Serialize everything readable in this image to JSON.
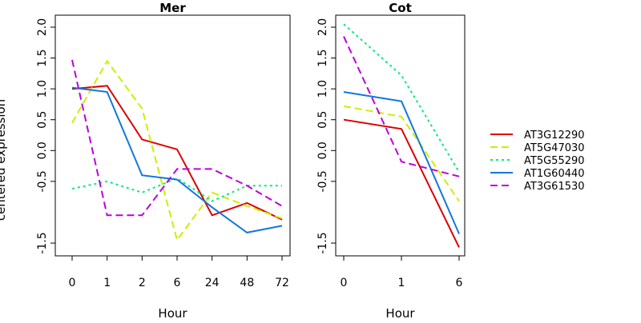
{
  "chart_data": [
    {
      "type": "line",
      "title": "Mer",
      "xlabel": "Hour",
      "ylabel": "centered expression",
      "categories": [
        "0",
        "1",
        "2",
        "6",
        "24",
        "48",
        "72"
      ],
      "ylim": [
        -1.75,
        2.2
      ],
      "yticks": [
        "-1.5",
        "-0.5",
        "0.0",
        "0.5",
        "1.0",
        "1.5",
        "2.0"
      ],
      "ytick_values": [
        -1.5,
        -0.5,
        0.0,
        0.5,
        1.0,
        1.5,
        2.0
      ],
      "grid": false,
      "series": [
        {
          "name": "AT3G12290",
          "values": [
            1.0,
            1.05,
            0.18,
            0.02,
            -1.05,
            -0.85,
            -1.12
          ]
        },
        {
          "name": "AT5G47030",
          "values": [
            0.45,
            1.45,
            0.68,
            -1.45,
            -0.68,
            -0.9,
            -1.1
          ]
        },
        {
          "name": "AT5G55290",
          "values": [
            -0.62,
            -0.5,
            -0.68,
            -0.45,
            -0.82,
            -0.57,
            -0.57
          ]
        },
        {
          "name": "AT1G60440",
          "values": [
            1.02,
            0.95,
            -0.4,
            -0.47,
            -0.92,
            -1.33,
            -1.22
          ]
        },
        {
          "name": "AT3G61530",
          "values": [
            1.47,
            -1.05,
            -1.05,
            -0.3,
            -0.3,
            -0.57,
            -0.9
          ]
        }
      ]
    },
    {
      "type": "line",
      "title": "Cot",
      "xlabel": "Hour",
      "categories": [
        "0",
        "1",
        "6"
      ],
      "ylim": [
        -1.75,
        2.2
      ],
      "yticks": [
        "-1.5",
        "-0.5",
        "0.0",
        "0.5",
        "1.0",
        "1.5",
        "2.0"
      ],
      "ytick_values": [
        -1.5,
        -0.5,
        0.0,
        0.5,
        1.0,
        1.5,
        2.0
      ],
      "grid": false,
      "series": [
        {
          "name": "AT3G12290",
          "values": [
            0.5,
            0.35,
            -1.57
          ]
        },
        {
          "name": "AT5G47030",
          "values": [
            0.72,
            0.55,
            -0.82
          ]
        },
        {
          "name": "AT5G55290",
          "values": [
            2.05,
            1.22,
            -0.35
          ]
        },
        {
          "name": "AT1G60440",
          "values": [
            0.95,
            0.8,
            -1.35
          ]
        },
        {
          "name": "AT3G61530",
          "values": [
            1.85,
            -0.18,
            -0.42
          ]
        }
      ]
    }
  ],
  "legend": {
    "placement": "right",
    "entries": [
      {
        "name": "AT3G12290",
        "color": "#dd0000",
        "dash": "solid"
      },
      {
        "name": "AT5G47030",
        "color": "#ccee00",
        "dash": "dashed"
      },
      {
        "name": "AT5G55290",
        "color": "#00ee77",
        "dash": "dotted"
      },
      {
        "name": "AT1G60440",
        "color": "#1177dd",
        "dash": "solid"
      },
      {
        "name": "AT3G61530",
        "color": "#bb00dd",
        "dash": "dashed"
      }
    ]
  }
}
